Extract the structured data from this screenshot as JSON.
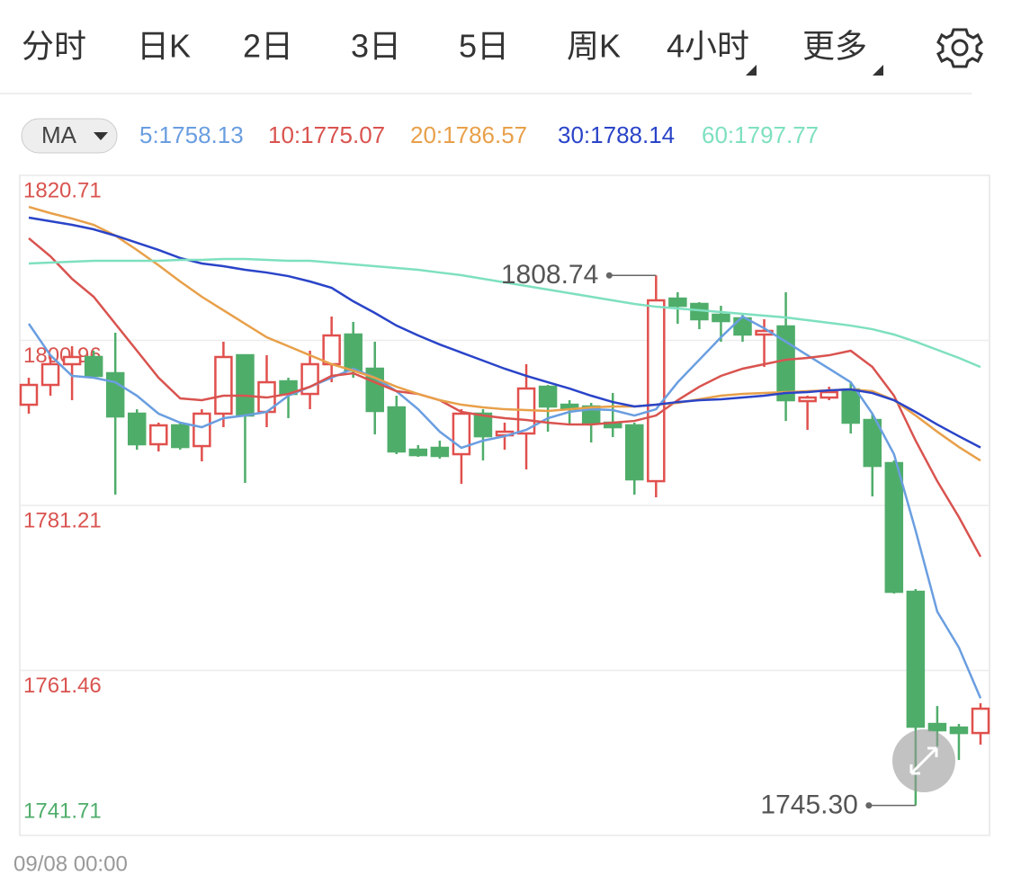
{
  "tabs": [
    "分时",
    "日K",
    "2日",
    "3日",
    "5日",
    "周K",
    "4小时",
    "更多"
  ],
  "active_tab": "4小时",
  "indicator": "MA",
  "chart_data": {
    "type": "candlestick",
    "categories": [
      "09/08 00:00",
      null,
      null,
      null,
      null,
      null,
      null,
      null,
      null,
      null,
      null,
      null,
      null,
      null,
      null,
      null,
      null,
      null,
      null,
      null,
      null,
      null,
      null,
      null,
      null,
      null,
      null,
      null,
      null,
      null,
      null,
      null,
      null,
      null,
      null,
      null,
      null,
      null,
      null,
      null,
      null,
      null,
      null,
      null,
      null
    ],
    "open": [
      1793.26,
      1795.63,
      1798.11,
      1798.97,
      1797.03,
      1792.19,
      1788.53,
      1790.79,
      1788.31,
      1792.19,
      1799.18,
      1792.4,
      1796.06,
      1794.55,
      1798.11,
      1801.66,
      1797.57,
      1792.94,
      1787.88,
      1788.1,
      1787.34,
      1792.19,
      1789.6,
      1789.82,
      1795.41,
      1793.26,
      1793.05,
      1791.11,
      1790.79,
      1784.11,
      1805.96,
      1805.32,
      1804.03,
      1803.6,
      1801.66,
      1802.63,
      1793.69,
      1794.12,
      1795.09,
      1791.43,
      1786.27,
      1770.87,
      1755.05,
      1754.62,
      1753.97
    ],
    "high": [
      1796.49,
      1799.18,
      1800.26,
      1799.72,
      1801.87,
      1792.72,
      1791.11,
      1791.11,
      1792.72,
      1800.8,
      1799.18,
      1799.18,
      1796.49,
      1799.72,
      1803.81,
      1803.17,
      1800.8,
      1794.34,
      1788.42,
      1788.96,
      1792.72,
      1792.72,
      1791.11,
      1798.11,
      1795.63,
      1793.8,
      1793.48,
      1794.66,
      1791.11,
      1808.74,
      1806.72,
      1805.53,
      1805.1,
      1804.24,
      1803.49,
      1806.72,
      1794.34,
      1795.41,
      1795.95,
      1792.19,
      1786.59,
      1771.2,
      1757.2,
      1755.05,
      1757.53
    ],
    "low": [
      1792.19,
      1794.34,
      1793.8,
      1796.49,
      1782.5,
      1787.88,
      1787.67,
      1787.88,
      1786.48,
      1790.57,
      1783.9,
      1790.57,
      1791.65,
      1792.72,
      1795.95,
      1796.49,
      1789.71,
      1787.34,
      1787.02,
      1786.8,
      1783.79,
      1786.59,
      1787.88,
      1785.51,
      1790.03,
      1790.89,
      1788.74,
      1789.39,
      1782.5,
      1782.18,
      1802.95,
      1802.3,
      1800.8,
      1800.8,
      1797.78,
      1791.32,
      1790.25,
      1793.8,
      1789.82,
      1782.28,
      1770.66,
      1745.3,
      1752.36,
      1750.74,
      1752.57
    ],
    "close": [
      1795.63,
      1798.11,
      1798.97,
      1796.71,
      1791.86,
      1788.53,
      1790.79,
      1788.2,
      1792.19,
      1798.97,
      1791.97,
      1795.95,
      1794.55,
      1798.11,
      1801.55,
      1797.35,
      1792.51,
      1787.67,
      1787.23,
      1787.13,
      1792.19,
      1789.49,
      1790.03,
      1795.2,
      1793.05,
      1792.72,
      1791.0,
      1790.57,
      1784.33,
      1805.75,
      1805.1,
      1803.49,
      1803.27,
      1801.66,
      1802.09,
      1793.8,
      1794.12,
      1794.77,
      1791.11,
      1785.94,
      1770.87,
      1754.73,
      1754.3,
      1753.97,
      1756.88
    ],
    "up_color": "#e0504d",
    "down_color": "#4fad6a",
    "series": [
      {
        "name": "5:1758.13",
        "color": "#6a9ee0",
        "values": [
          1802.95,
          1799.18,
          1796.71,
          1796.49,
          1795.95,
          1794.34,
          1792.19,
          1791.11,
          1790.57,
          1791.65,
          1791.97,
          1792.4,
          1794.34,
          1795.41,
          1796.49,
          1797.57,
          1796.49,
          1794.88,
          1792.72,
          1790.03,
          1788.1,
          1788.96,
          1789.49,
          1790.25,
          1791.65,
          1792.4,
          1792.72,
          1792.62,
          1791.97,
          1792.72,
          1795.95,
          1798.64,
          1801.33,
          1803.81,
          1802.41,
          1800.8,
          1799.18,
          1797.57,
          1795.95,
          1792.19,
          1787.34,
          1778.19,
          1768.5,
          1764.2,
          1758.13
        ]
      },
      {
        "name": "10:1775.07",
        "color": "#d9534f",
        "values": [
          1813.18,
          1811.02,
          1808.33,
          1806.18,
          1802.95,
          1799.72,
          1796.49,
          1794.02,
          1793.8,
          1794.34,
          1794.34,
          1794.12,
          1794.55,
          1795.41,
          1796.71,
          1797.03,
          1795.95,
          1794.88,
          1794.55,
          1793.8,
          1792.4,
          1791.97,
          1791.65,
          1791.43,
          1791.11,
          1790.89,
          1790.89,
          1791.11,
          1791.32,
          1791.97,
          1793.8,
          1795.41,
          1796.71,
          1797.57,
          1798.11,
          1798.64,
          1798.86,
          1799.18,
          1799.72,
          1797.78,
          1794.34,
          1788.96,
          1784.11,
          1779.81,
          1775.07
        ]
      },
      {
        "name": "20:1786.57",
        "color": "#e8a04a",
        "values": [
          1816.94,
          1816.19,
          1815.54,
          1814.79,
          1813.5,
          1811.78,
          1809.95,
          1808.01,
          1806.18,
          1804.56,
          1802.95,
          1801.33,
          1800.26,
          1799.18,
          1798.11,
          1797.35,
          1796.49,
          1795.41,
          1794.55,
          1793.8,
          1793.26,
          1792.94,
          1792.72,
          1792.62,
          1792.51,
          1792.72,
          1792.94,
          1793.05,
          1793.05,
          1793.26,
          1793.48,
          1793.91,
          1794.34,
          1794.55,
          1794.66,
          1794.77,
          1794.88,
          1794.98,
          1795.09,
          1794.88,
          1793.8,
          1791.97,
          1790.03,
          1788.2,
          1786.57
        ]
      },
      {
        "name": "30:1788.14",
        "color": "#2a44c8",
        "values": [
          1815.65,
          1815.22,
          1814.79,
          1814.25,
          1813.5,
          1812.64,
          1811.78,
          1810.81,
          1810.16,
          1809.84,
          1809.41,
          1809.08,
          1808.65,
          1808.01,
          1807.25,
          1805.64,
          1804.24,
          1802.73,
          1801.55,
          1800.47,
          1799.5,
          1798.54,
          1797.57,
          1796.71,
          1795.95,
          1795.2,
          1794.34,
          1793.58,
          1793.05,
          1793.26,
          1793.58,
          1793.8,
          1793.91,
          1794.12,
          1794.34,
          1794.66,
          1794.77,
          1794.98,
          1795.09,
          1794.66,
          1793.8,
          1792.4,
          1790.89,
          1789.49,
          1788.14
        ]
      },
      {
        "name": "60:1797.77",
        "color": "#7ee0c0",
        "values": [
          1810.16,
          1810.27,
          1810.38,
          1810.48,
          1810.48,
          1810.48,
          1810.48,
          1810.59,
          1810.59,
          1810.7,
          1810.7,
          1810.59,
          1810.48,
          1810.48,
          1810.27,
          1810.05,
          1809.84,
          1809.62,
          1809.41,
          1809.08,
          1808.76,
          1808.33,
          1807.9,
          1807.47,
          1807.04,
          1806.61,
          1806.18,
          1805.75,
          1805.32,
          1804.99,
          1804.78,
          1804.56,
          1804.35,
          1804.13,
          1803.92,
          1803.7,
          1803.38,
          1803.06,
          1802.73,
          1802.3,
          1801.66,
          1800.8,
          1799.83,
          1798.86,
          1797.77
        ]
      }
    ],
    "ylim": [
      1741.71,
      1820.71
    ],
    "yticks": [
      1820.71,
      1800.96,
      1781.21,
      1761.46,
      1741.71
    ],
    "ytick_colors": [
      "#d9534f",
      "#d9534f",
      "#d9534f",
      "#d9534f",
      "#4fad6a"
    ],
    "high_label": "1808.74",
    "low_label": "1745.30",
    "grid": true
  }
}
